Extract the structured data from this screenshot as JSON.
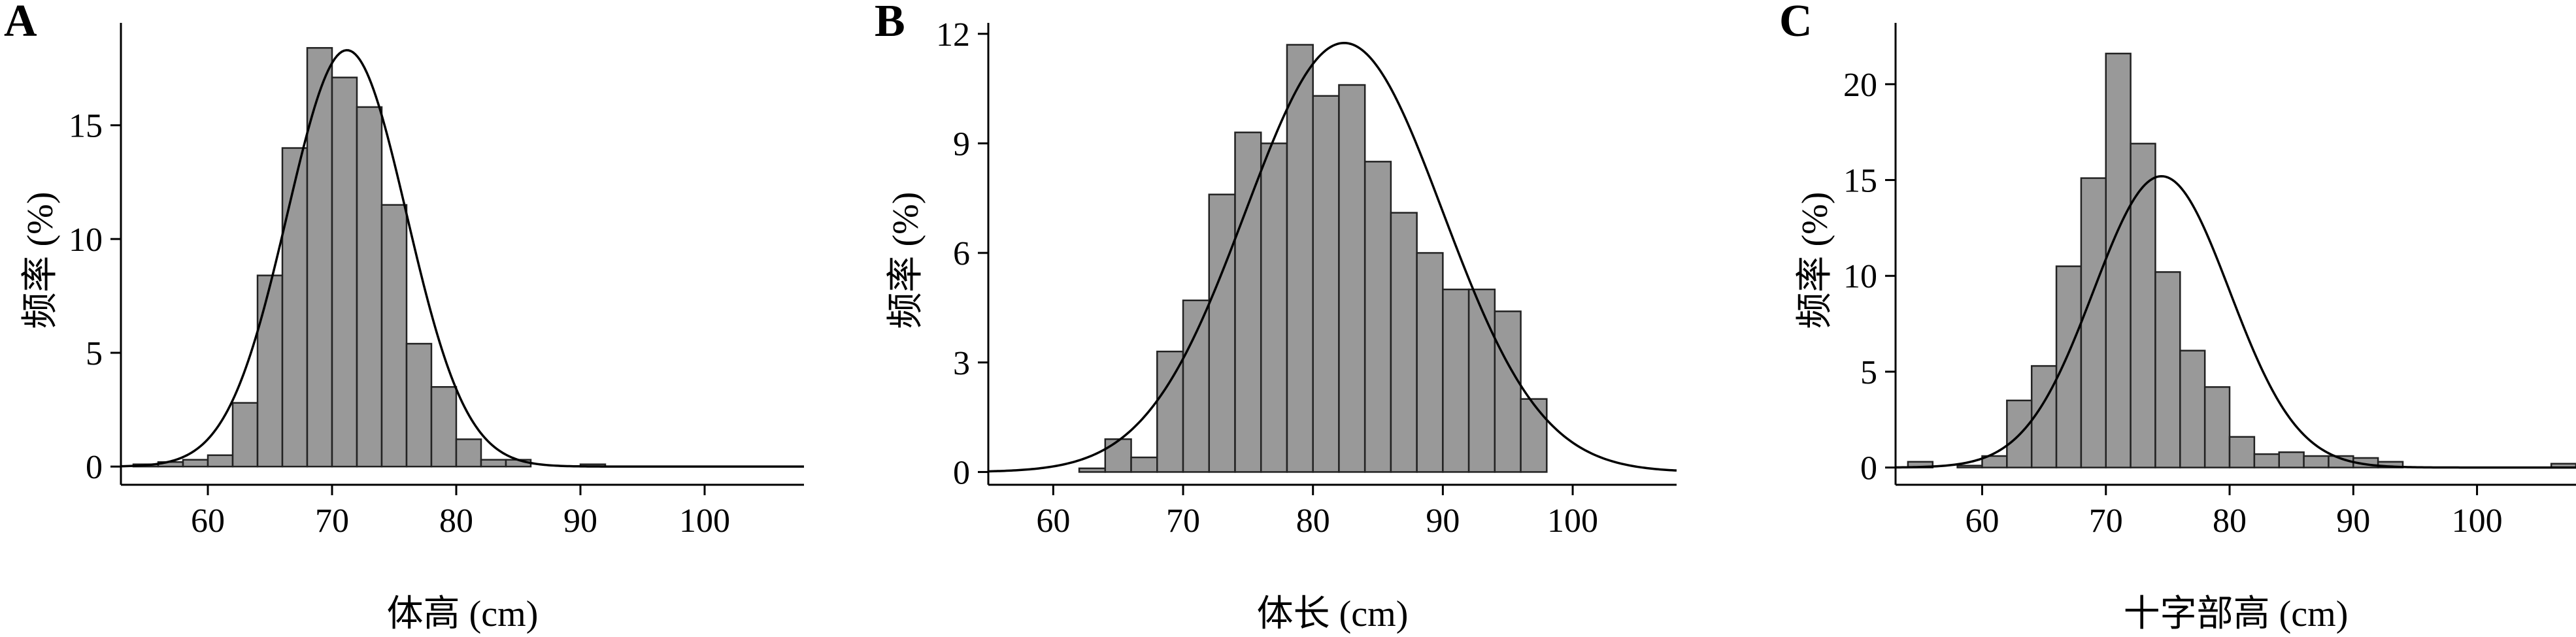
{
  "chart_data": [
    {
      "type": "bar",
      "panel_letter": "A",
      "xlabel": "体高 (cm)",
      "ylabel": "频率 (%)",
      "xlim": [
        53,
        108
      ],
      "ylim": [
        -0.8,
        19.5
      ],
      "xticks": [
        60,
        70,
        80,
        90,
        100
      ],
      "yticks": [
        0,
        5,
        10,
        15
      ],
      "bin_width": 2,
      "bins_start": [
        54,
        56,
        58,
        60,
        62,
        64,
        66,
        68,
        70,
        72,
        74,
        76,
        78,
        80,
        82,
        84,
        86,
        88,
        90,
        92
      ],
      "values": [
        0.1,
        0.2,
        0.3,
        0.5,
        2.8,
        8.4,
        14.0,
        18.4,
        17.1,
        15.8,
        11.5,
        5.4,
        3.5,
        1.2,
        0.3,
        0.3,
        0.0,
        0.0,
        0.1,
        0.0
      ],
      "fit": {
        "type": "normal",
        "mean": 71.2,
        "sd": 4.8,
        "peak": 18.3
      }
    },
    {
      "type": "bar",
      "panel_letter": "B",
      "xlabel": "体长 (cm)",
      "ylabel": "频率 (%)",
      "xlim": [
        55,
        108
      ],
      "ylim": [
        -0.35,
        12.3
      ],
      "xticks": [
        60,
        70,
        80,
        90,
        100
      ],
      "yticks": [
        0,
        3,
        6,
        9,
        12
      ],
      "bin_width": 2,
      "bins_start": [
        62,
        64,
        66,
        68,
        70,
        72,
        74,
        76,
        78,
        80,
        82,
        84,
        86,
        88,
        90,
        92,
        94,
        96,
        98
      ],
      "values": [
        0.1,
        0.9,
        0.4,
        3.3,
        4.7,
        7.6,
        9.3,
        9.0,
        11.7,
        10.3,
        10.6,
        8.5,
        7.1,
        6.0,
        5.0,
        5.0,
        4.4,
        2.0,
        0.0
      ],
      "fit": {
        "type": "normal",
        "mean": 82.4,
        "sd": 7.6,
        "peak": 11.75
      }
    },
    {
      "type": "bar",
      "panel_letter": "C",
      "xlabel": "十字部高 (cm)",
      "ylabel": "频率 (%)",
      "xlim": [
        53,
        108
      ],
      "ylim": [
        -0.9,
        23.2
      ],
      "xticks": [
        60,
        70,
        80,
        90,
        100
      ],
      "yticks": [
        0,
        5,
        10,
        15,
        20
      ],
      "bin_width": 2,
      "bins_start": [
        54,
        56,
        58,
        60,
        62,
        64,
        66,
        68,
        70,
        72,
        74,
        76,
        78,
        80,
        82,
        84,
        86,
        88,
        90,
        92,
        94,
        96,
        98,
        100,
        102,
        104,
        106
      ],
      "values": [
        0.3,
        0.0,
        0.1,
        0.6,
        3.5,
        5.3,
        10.5,
        15.1,
        21.6,
        16.9,
        10.2,
        6.1,
        4.2,
        1.6,
        0.7,
        0.8,
        0.6,
        0.6,
        0.5,
        0.3,
        0.0,
        0.0,
        0.0,
        0.0,
        0.0,
        0.0,
        0.2
      ],
      "fit": {
        "type": "normal",
        "mean": 74.5,
        "sd": 5.5,
        "peak": 15.2
      }
    }
  ]
}
